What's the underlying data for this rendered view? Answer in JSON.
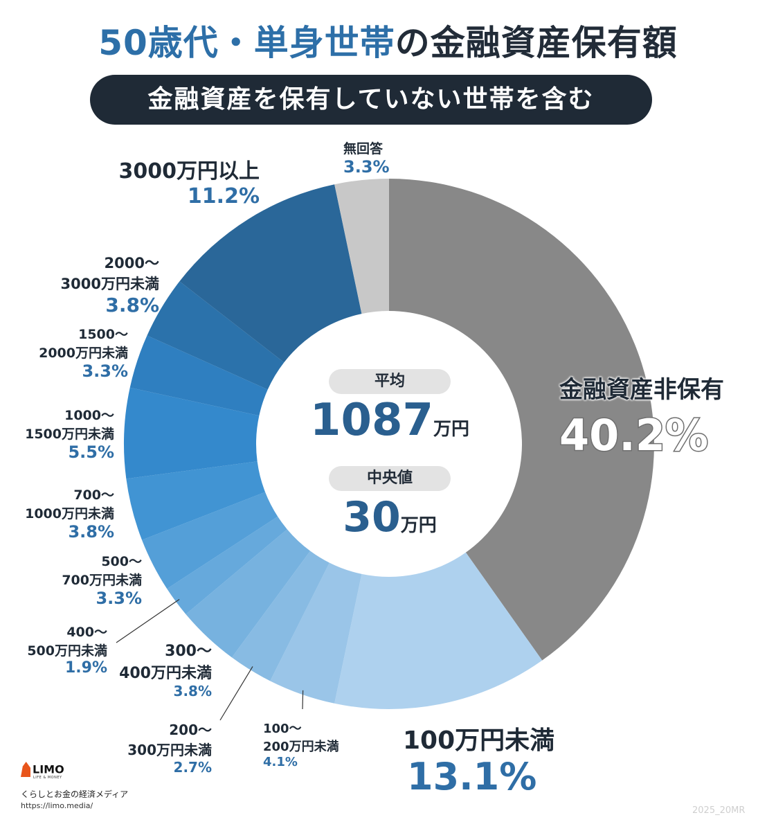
{
  "title": {
    "highlight": "50歳代・単身世帯",
    "rest": "の金融資産保有額"
  },
  "subtitle": "金融資産を保有していない世帯を含む",
  "center": {
    "avg_label": "平均",
    "avg_value": "1087",
    "avg_unit": "万円",
    "median_label": "中央値",
    "median_value": "30",
    "median_unit": "万円"
  },
  "chart_data": {
    "type": "pie",
    "variant": "donut",
    "start": "top, clockwise",
    "slices": [
      {
        "name": "金融資産非保有",
        "pct_label": "40.2%",
        "value": 40.2,
        "color": "#888888"
      },
      {
        "name": "100万円未満",
        "pct_label": "13.1%",
        "value": 13.1,
        "color": "#aed1ee"
      },
      {
        "name": "100〜200万円未満",
        "pct_label": "4.1%",
        "value": 4.1,
        "color": "#9ac5e8"
      },
      {
        "name": "200〜300万円未満",
        "pct_label": "2.7%",
        "value": 2.7,
        "color": "#88bbe3"
      },
      {
        "name": "300〜400万円未満",
        "pct_label": "3.8%",
        "value": 3.8,
        "color": "#77b2df"
      },
      {
        "name": "400〜500万円未満",
        "pct_label": "1.9%",
        "value": 1.9,
        "color": "#66a9dc"
      },
      {
        "name": "500〜700万円未満",
        "pct_label": "3.3%",
        "value": 3.3,
        "color": "#549fd8"
      },
      {
        "name": "700〜1000万円未満",
        "pct_label": "3.8%",
        "value": 3.8,
        "color": "#4194d3"
      },
      {
        "name": "1000〜1500万円未満",
        "pct_label": "5.5%",
        "value": 5.5,
        "color": "#3489cc"
      },
      {
        "name": "1500〜2000万円未満",
        "pct_label": "3.3%",
        "value": 3.3,
        "color": "#2f7fc0"
      },
      {
        "name": "2000〜3000万円未満",
        "pct_label": "3.8%",
        "value": 3.8,
        "color": "#2b72ab"
      },
      {
        "name": "3000万円以上",
        "pct_label": "11.2%",
        "value": 11.2,
        "color": "#2a6799"
      },
      {
        "name": "無回答",
        "pct_label": "3.3%",
        "value": 3.3,
        "color": "#c8c8c8"
      }
    ],
    "label_lines": {
      "金融資産非保有": [
        "金融資産非保有"
      ],
      "100万円未満": [
        "100万円未満"
      ],
      "100〜200万円未満": [
        "100〜",
        "200万円未満"
      ],
      "200〜300万円未満": [
        "200〜",
        "300万円未満"
      ],
      "300〜400万円未満": [
        "300〜",
        "400万円未満"
      ],
      "400〜500万円未満": [
        "400〜",
        "500万円未満"
      ],
      "500〜700万円未満": [
        "500〜",
        "700万円未満"
      ],
      "700〜1000万円未満": [
        "700〜",
        "1000万円未満"
      ],
      "1000〜1500万円未満": [
        "1000〜",
        "1500万円未満"
      ],
      "1500〜2000万円未満": [
        "1500〜",
        "2000万円未満"
      ],
      "2000〜3000万円未満": [
        "2000〜",
        "3000万円未満"
      ],
      "3000万円以上": [
        "3000万円以上"
      ],
      "無回答": [
        "無回答"
      ]
    }
  },
  "footer": {
    "logo_name": "LIMO",
    "logo_sub": "LIFE & MONEY",
    "tagline": "くらしとお金の経済メディア",
    "url": "https://limo.media/",
    "code": "2025_20MR"
  }
}
